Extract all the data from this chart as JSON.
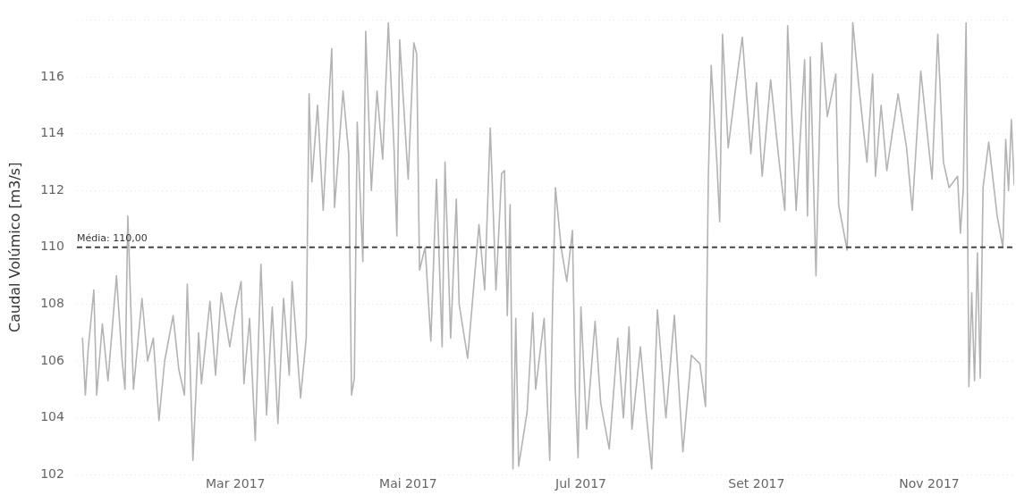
{
  "chart_data": {
    "type": "line",
    "ylabel": "Caudal Volúmico [m3/s]",
    "xlim": [
      "2017-01-04",
      "2017-12-01"
    ],
    "xticks": [
      {
        "value": "2017-03-01",
        "label": "Mar 2017"
      },
      {
        "value": "2017-05-01",
        "label": "Mai 2017"
      },
      {
        "value": "2017-07-01",
        "label": "Jul 2017"
      },
      {
        "value": "2017-09-01",
        "label": "Set 2017"
      },
      {
        "value": "2017-11-01",
        "label": "Nov 2017"
      }
    ],
    "ylim": [
      102,
      118
    ],
    "yticks": [
      102,
      104,
      106,
      108,
      110,
      112,
      114,
      116,
      {
        "value": 118,
        "label": null
      }
    ],
    "grid": "y",
    "legend": false,
    "marker": "none",
    "line_style": "solid",
    "ref_lines": [
      {
        "axis": "y",
        "value": 110,
        "label": "Média: 110,00",
        "color": "#444444",
        "line_style": "dashed"
      }
    ],
    "x": [
      "2017-01-06",
      "2017-01-07",
      "2017-01-08",
      "2017-01-10",
      "2017-01-11",
      "2017-01-13",
      "2017-01-15",
      "2017-01-18",
      "2017-01-20",
      "2017-01-21",
      "2017-01-22",
      "2017-01-24",
      "2017-01-27",
      "2017-01-29",
      "2017-01-31",
      "2017-02-02",
      "2017-02-04",
      "2017-02-07",
      "2017-02-09",
      "2017-02-11",
      "2017-02-12",
      "2017-02-13",
      "2017-02-14",
      "2017-02-16",
      "2017-02-17",
      "2017-02-20",
      "2017-02-22",
      "2017-02-24",
      "2017-02-27",
      "2017-03-01",
      "2017-03-03",
      "2017-03-04",
      "2017-03-06",
      "2017-03-08",
      "2017-03-10",
      "2017-03-12",
      "2017-03-14",
      "2017-03-16",
      "2017-03-18",
      "2017-03-20",
      "2017-03-21",
      "2017-03-24",
      "2017-03-26",
      "2017-03-27",
      "2017-03-28",
      "2017-03-30",
      "2017-04-01",
      "2017-04-03",
      "2017-04-04",
      "2017-04-05",
      "2017-04-08",
      "2017-04-10",
      "2017-04-11",
      "2017-04-12",
      "2017-04-13",
      "2017-04-15",
      "2017-04-16",
      "2017-04-18",
      "2017-04-20",
      "2017-04-22",
      "2017-04-24",
      "2017-04-26",
      "2017-04-27",
      "2017-04-28",
      "2017-05-01",
      "2017-05-03",
      "2017-05-04",
      "2017-05-05",
      "2017-05-07",
      "2017-05-09",
      "2017-05-11",
      "2017-05-13",
      "2017-05-14",
      "2017-05-16",
      "2017-05-18",
      "2017-05-19",
      "2017-05-22",
      "2017-05-26",
      "2017-05-28",
      "2017-05-30",
      "2017-06-01",
      "2017-06-03",
      "2017-06-04",
      "2017-06-05",
      "2017-06-06",
      "2017-06-07",
      "2017-06-08",
      "2017-06-09",
      "2017-06-12",
      "2017-06-14",
      "2017-06-15",
      "2017-06-18",
      "2017-06-20",
      "2017-06-21",
      "2017-06-22",
      "2017-06-24",
      "2017-06-26",
      "2017-06-28",
      "2017-06-29",
      "2017-06-30",
      "2017-07-01",
      "2017-07-03",
      "2017-07-06",
      "2017-07-08",
      "2017-07-11",
      "2017-07-14",
      "2017-07-16",
      "2017-07-18",
      "2017-07-19",
      "2017-07-22",
      "2017-07-24",
      "2017-07-26",
      "2017-07-28",
      "2017-07-31",
      "2017-08-03",
      "2017-08-06",
      "2017-08-09",
      "2017-08-12",
      "2017-08-14",
      "2017-08-15",
      "2017-08-16",
      "2017-08-18",
      "2017-08-19",
      "2017-08-20",
      "2017-08-22",
      "2017-08-25",
      "2017-08-27",
      "2017-08-30",
      "2017-09-01",
      "2017-09-03",
      "2017-09-06",
      "2017-09-09",
      "2017-09-11",
      "2017-09-12",
      "2017-09-15",
      "2017-09-18",
      "2017-09-19",
      "2017-09-20",
      "2017-09-22",
      "2017-09-24",
      "2017-09-26",
      "2017-09-29",
      "2017-09-30",
      "2017-10-03",
      "2017-10-05",
      "2017-10-07",
      "2017-10-10",
      "2017-10-12",
      "2017-10-13",
      "2017-10-15",
      "2017-10-17",
      "2017-10-21",
      "2017-10-24",
      "2017-10-26",
      "2017-10-29",
      "2017-11-02",
      "2017-11-04",
      "2017-11-06",
      "2017-11-08",
      "2017-11-11",
      "2017-11-12",
      "2017-11-13",
      "2017-11-14",
      "2017-11-15",
      "2017-11-16",
      "2017-11-17",
      "2017-11-18",
      "2017-11-19",
      "2017-11-20",
      "2017-11-22",
      "2017-11-25",
      "2017-11-27",
      "2017-11-28",
      "2017-11-29",
      "2017-11-30",
      "2017-12-01"
    ],
    "series": [
      {
        "color": "#b3b3b3",
        "values": [
          106.8,
          104.8,
          106.4,
          108.5,
          104.8,
          107.3,
          105.3,
          109.0,
          106.0,
          105.0,
          111.1,
          105.0,
          108.2,
          106.0,
          106.8,
          103.9,
          106.0,
          107.6,
          105.7,
          104.8,
          108.7,
          105.8,
          102.5,
          107.0,
          105.2,
          108.1,
          105.5,
          108.4,
          106.5,
          107.8,
          108.8,
          105.2,
          107.5,
          103.2,
          109.4,
          104.1,
          107.9,
          103.8,
          108.2,
          105.5,
          108.8,
          104.7,
          106.8,
          115.4,
          112.3,
          115.0,
          111.3,
          115.2,
          117.0,
          111.4,
          115.5,
          113.3,
          104.8,
          105.4,
          114.4,
          109.5,
          117.6,
          112.0,
          115.5,
          113.1,
          117.9,
          113.5,
          110.4,
          117.3,
          112.4,
          117.2,
          116.8,
          109.2,
          110.0,
          106.7,
          112.4,
          106.5,
          113.0,
          106.8,
          111.7,
          108.0,
          106.1,
          110.8,
          108.5,
          114.2,
          108.5,
          112.6,
          112.7,
          107.6,
          111.5,
          102.2,
          107.5,
          102.3,
          104.2,
          107.7,
          105.0,
          107.5,
          102.5,
          108.0,
          112.1,
          110.0,
          108.8,
          110.6,
          105.0,
          102.6,
          107.9,
          103.6,
          107.4,
          104.5,
          102.9,
          106.8,
          104.0,
          107.2,
          103.6,
          106.5,
          104.2,
          102.2,
          107.8,
          104.0,
          107.6,
          102.8,
          106.2,
          105.9,
          104.4,
          112.5,
          116.4,
          113.0,
          110.9,
          117.5,
          113.5,
          115.9,
          117.4,
          113.3,
          115.8,
          112.5,
          115.9,
          113.0,
          111.3,
          117.8,
          111.3,
          116.6,
          111.1,
          116.7,
          109.0,
          117.2,
          114.6,
          116.1,
          111.5,
          109.9,
          117.9,
          115.8,
          113.0,
          116.1,
          112.5,
          115.0,
          112.7,
          115.4,
          113.5,
          111.3,
          116.2,
          112.4,
          117.5,
          113.0,
          112.1,
          112.5,
          110.5,
          112.0,
          117.9,
          105.1,
          108.4,
          105.3,
          109.8,
          105.4,
          112.1,
          113.7,
          111.1,
          110.0,
          113.8,
          112.0,
          114.5,
          112.2
        ]
      }
    ]
  }
}
